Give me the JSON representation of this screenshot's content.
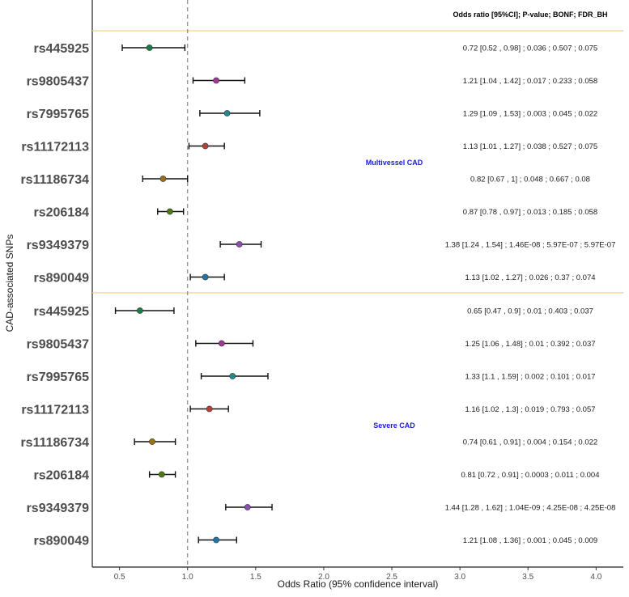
{
  "chart_data": {
    "type": "forest",
    "header": "Odds ratio [95%CI]; P-value; BONF; FDR_BH",
    "xlabel": "Odds Ratio (95% confidence interval)",
    "ylabel": "CAD-associated SNPs",
    "xlim": [
      0.3,
      4.2
    ],
    "xticks": [
      "0.5",
      "1.0",
      "1.5",
      "2.0",
      "2.5",
      "3.0",
      "3.5",
      "4.0"
    ],
    "reference_line": 1.0,
    "snp_colors": {
      "rs445925": "#1b7e4a",
      "rs9805437": "#9b3b8f",
      "rs7995765": "#1f8b8f",
      "rs11172113": "#b5403a",
      "rs11186734": "#9a6f16",
      "rs206184": "#4f7a12",
      "rs9349379": "#8a4fb0",
      "rs890049": "#1f74a8"
    },
    "groups": [
      {
        "name": "Multivessel CAD",
        "rows": [
          {
            "snp": "rs445925",
            "or": 0.72,
            "lo": 0.52,
            "hi": 0.98,
            "label": "0.72 [0.52 , 0.98] ; 0.036 ; 0.507 ; 0.075"
          },
          {
            "snp": "rs9805437",
            "or": 1.21,
            "lo": 1.04,
            "hi": 1.42,
            "label": "1.21 [1.04 , 1.42] ; 0.017 ; 0.233 ; 0.058"
          },
          {
            "snp": "rs7995765",
            "or": 1.29,
            "lo": 1.09,
            "hi": 1.53,
            "label": "1.29 [1.09 , 1.53] ; 0.003 ; 0.045 ; 0.022"
          },
          {
            "snp": "rs11172113",
            "or": 1.13,
            "lo": 1.01,
            "hi": 1.27,
            "label": "1.13 [1.01 , 1.27] ; 0.038 ; 0.527 ; 0.075"
          },
          {
            "snp": "rs11186734",
            "or": 0.82,
            "lo": 0.67,
            "hi": 1.0,
            "label": "0.82 [0.67 , 1] ; 0.048 ; 0.667 ; 0.08"
          },
          {
            "snp": "rs206184",
            "or": 0.87,
            "lo": 0.78,
            "hi": 0.97,
            "label": "0.87 [0.78 , 0.97] ; 0.013 ; 0.185 ; 0.058"
          },
          {
            "snp": "rs9349379",
            "or": 1.38,
            "lo": 1.24,
            "hi": 1.54,
            "label": "1.38 [1.24 , 1.54] ; 1.46E-08 ; 5.97E-07 ; 5.97E-07"
          },
          {
            "snp": "rs890049",
            "or": 1.13,
            "lo": 1.02,
            "hi": 1.27,
            "label": "1.13 [1.02 , 1.27] ; 0.026 ; 0.37 ; 0.074"
          }
        ]
      },
      {
        "name": "Severe CAD",
        "rows": [
          {
            "snp": "rs445925",
            "or": 0.65,
            "lo": 0.47,
            "hi": 0.9,
            "label": "0.65 [0.47 , 0.9] ; 0.01 ; 0.403 ; 0.037"
          },
          {
            "snp": "rs9805437",
            "or": 1.25,
            "lo": 1.06,
            "hi": 1.48,
            "label": "1.25 [1.06 , 1.48] ; 0.01 ; 0.392 ; 0.037"
          },
          {
            "snp": "rs7995765",
            "or": 1.33,
            "lo": 1.1,
            "hi": 1.59,
            "label": "1.33 [1.1 , 1.59] ; 0.002 ; 0.101 ; 0.017"
          },
          {
            "snp": "rs11172113",
            "or": 1.16,
            "lo": 1.02,
            "hi": 1.3,
            "label": "1.16 [1.02 , 1.3] ; 0.019 ; 0.793 ; 0.057"
          },
          {
            "snp": "rs11186734",
            "or": 0.74,
            "lo": 0.61,
            "hi": 0.91,
            "label": "0.74 [0.61 , 0.91] ; 0.004 ; 0.154 ; 0.022"
          },
          {
            "snp": "rs206184",
            "or": 0.81,
            "lo": 0.72,
            "hi": 0.91,
            "label": "0.81 [0.72 , 0.91] ; 0.0003 ; 0.011 ; 0.004"
          },
          {
            "snp": "rs9349379",
            "or": 1.44,
            "lo": 1.28,
            "hi": 1.62,
            "label": "1.44 [1.28 , 1.62] ; 1.04E-09 ; 4.25E-08 ; 4.25E-08"
          },
          {
            "snp": "rs890049",
            "or": 1.21,
            "lo": 1.08,
            "hi": 1.36,
            "label": "1.21 [1.08 , 1.36] ; 0.001 ; 0.045 ; 0.009"
          }
        ]
      }
    ]
  }
}
